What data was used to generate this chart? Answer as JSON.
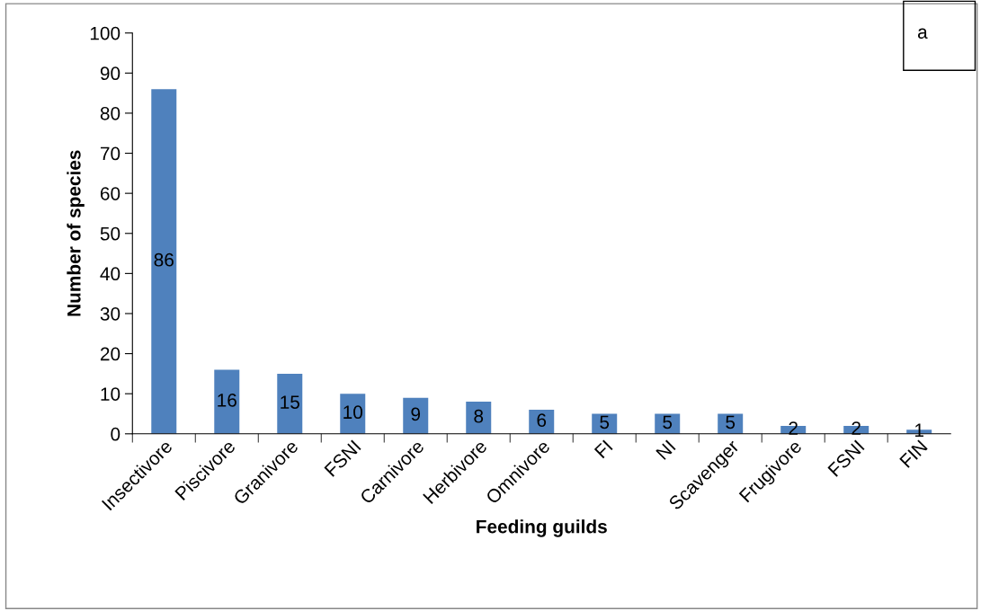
{
  "chart_data": {
    "type": "bar",
    "xlabel": "Feeding guilds",
    "ylabel": "Number of species",
    "categories": [
      "Insectivore",
      "Piscivore",
      "Granivore",
      "FSNI",
      "Carnivore",
      "Herbivore",
      "Omnivore",
      "FI",
      "NI",
      "Scavenger",
      "Frugivore",
      "FSNI",
      "FIN"
    ],
    "values": [
      86,
      16,
      15,
      10,
      9,
      8,
      6,
      5,
      5,
      5,
      2,
      2,
      1
    ],
    "color": "#4f81bd",
    "ylim": [
      0,
      100
    ],
    "yticks": [
      0,
      10,
      20,
      30,
      40,
      50,
      60,
      70,
      80,
      90,
      100
    ],
    "data_labels": true,
    "grid": false,
    "annotations": [
      "a"
    ]
  }
}
